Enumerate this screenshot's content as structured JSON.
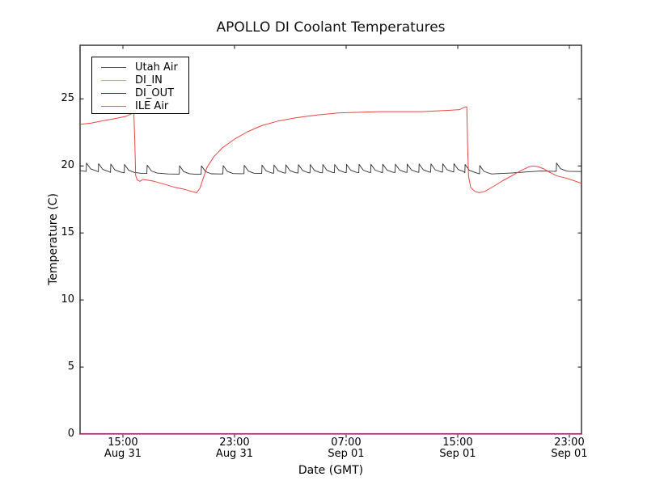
{
  "figure": {
    "title": "APOLLO DI Coolant Temperatures",
    "xlabel": "Date (GMT)",
    "ylabel": "Temperature (C)",
    "background": "#ffffff",
    "axis_color": "#262626",
    "text_color": "#000000"
  },
  "chart_data": {
    "type": "line",
    "title": "APOLLO DI Coolant Temperatures",
    "xlabel": "Date (GMT)",
    "ylabel": "Temperature (C)",
    "x_unit": "hours since Aug 31 ~12:00 GMT",
    "xlim": [
      0,
      35.94
    ],
    "ylim": [
      0,
      29
    ],
    "grid": false,
    "legend_position": "upper left",
    "yticks": [
      0,
      5,
      10,
      15,
      20,
      25
    ],
    "xticks": [
      {
        "h": 3.07,
        "time": "15:00",
        "date": "Aug 31"
      },
      {
        "h": 11.07,
        "time": "23:00",
        "date": "Aug 31"
      },
      {
        "h": 19.07,
        "time": "07:00",
        "date": "Sep 01"
      },
      {
        "h": 27.07,
        "time": "15:00",
        "date": "Sep 01"
      },
      {
        "h": 35.07,
        "time": "23:00",
        "date": "Sep 01"
      }
    ],
    "series": [
      {
        "name": "Utah Air",
        "color": "#2e2e2e",
        "legend_color": "#555555",
        "width": 0.9,
        "style": "sawtooth",
        "baseline": [
          [
            0,
            19.65
          ],
          [
            0.4,
            19.6
          ],
          [
            2.1,
            19.52
          ],
          [
            4.4,
            19.45
          ],
          [
            6.3,
            19.4
          ],
          [
            8.3,
            19.38
          ],
          [
            10.0,
            19.4
          ],
          [
            11.5,
            19.42
          ],
          [
            12.8,
            19.44
          ],
          [
            16.2,
            19.48
          ],
          [
            20.6,
            19.5
          ],
          [
            24.0,
            19.52
          ],
          [
            27.3,
            19.55
          ],
          [
            27.9,
            19.42
          ],
          [
            29.5,
            19.4
          ],
          [
            31.0,
            19.48
          ],
          [
            32.0,
            19.55
          ],
          [
            33.0,
            19.62
          ],
          [
            33.9,
            19.6
          ],
          [
            35.0,
            19.6
          ],
          [
            35.94,
            19.58
          ]
        ],
        "spike_hours": [
          0.46,
          1.33,
          2.2,
          3.19,
          4.81,
          7.13,
          8.7,
          10.26,
          11.77,
          13.04,
          13.9,
          14.75,
          15.65,
          16.5,
          17.4,
          18.25,
          19.1,
          20.0,
          20.85,
          21.7,
          22.6,
          23.45,
          24.3,
          25.15,
          26.0,
          26.8,
          27.6,
          28.65,
          34.15
        ],
        "spike_amplitude": 0.62
      },
      {
        "name": "DI_IN",
        "color": "#ffa500",
        "legend_color": "#ffa500",
        "width": 1.2,
        "opacity": 0.9,
        "style": "line",
        "points": [
          [
            0,
            0
          ],
          [
            35.94,
            0
          ]
        ]
      },
      {
        "name": "DI_OUT",
        "color": "#800080",
        "legend_color": "#800080",
        "width": 1.2,
        "opacity": 0.75,
        "style": "line",
        "points": [
          [
            0,
            0.03
          ],
          [
            35.94,
            0.03
          ]
        ]
      },
      {
        "name": "ILE Air",
        "color": "#ee4242",
        "legend_color": "#f05555",
        "width": 1.0,
        "style": "line",
        "points": [
          [
            0,
            23.1
          ],
          [
            0.8,
            23.2
          ],
          [
            1.8,
            23.4
          ],
          [
            2.6,
            23.55
          ],
          [
            3.3,
            23.7
          ],
          [
            3.7,
            23.9
          ],
          [
            3.85,
            24.1
          ],
          [
            3.92,
            22.0
          ],
          [
            3.98,
            19.3
          ],
          [
            4.1,
            18.95
          ],
          [
            4.3,
            18.85
          ],
          [
            4.5,
            19.0
          ],
          [
            4.8,
            18.95
          ],
          [
            5.3,
            18.85
          ],
          [
            6.0,
            18.65
          ],
          [
            6.8,
            18.4
          ],
          [
            7.5,
            18.25
          ],
          [
            8.0,
            18.1
          ],
          [
            8.35,
            18.0
          ],
          [
            8.6,
            18.35
          ],
          [
            8.8,
            19.0
          ],
          [
            9.1,
            19.9
          ],
          [
            9.6,
            20.7
          ],
          [
            10.2,
            21.35
          ],
          [
            11.07,
            22.0
          ],
          [
            12.0,
            22.55
          ],
          [
            13.0,
            23.0
          ],
          [
            14.2,
            23.35
          ],
          [
            15.5,
            23.6
          ],
          [
            17.0,
            23.8
          ],
          [
            18.5,
            23.95
          ],
          [
            20.0,
            24.0
          ],
          [
            21.5,
            24.05
          ],
          [
            23.0,
            24.05
          ],
          [
            24.5,
            24.05
          ],
          [
            25.5,
            24.1
          ],
          [
            26.5,
            24.15
          ],
          [
            27.2,
            24.2
          ],
          [
            27.6,
            24.4
          ],
          [
            27.72,
            24.4
          ],
          [
            27.78,
            21.5
          ],
          [
            27.85,
            19.2
          ],
          [
            28.0,
            18.4
          ],
          [
            28.3,
            18.1
          ],
          [
            28.6,
            18.0
          ],
          [
            29.0,
            18.1
          ],
          [
            29.6,
            18.45
          ],
          [
            30.3,
            18.9
          ],
          [
            31.0,
            19.3
          ],
          [
            31.6,
            19.65
          ],
          [
            32.1,
            19.9
          ],
          [
            32.4,
            20.0
          ],
          [
            32.8,
            19.95
          ],
          [
            33.2,
            19.8
          ],
          [
            33.7,
            19.5
          ],
          [
            34.2,
            19.25
          ],
          [
            34.8,
            19.1
          ],
          [
            35.4,
            18.9
          ],
          [
            35.94,
            18.7
          ]
        ]
      }
    ]
  }
}
